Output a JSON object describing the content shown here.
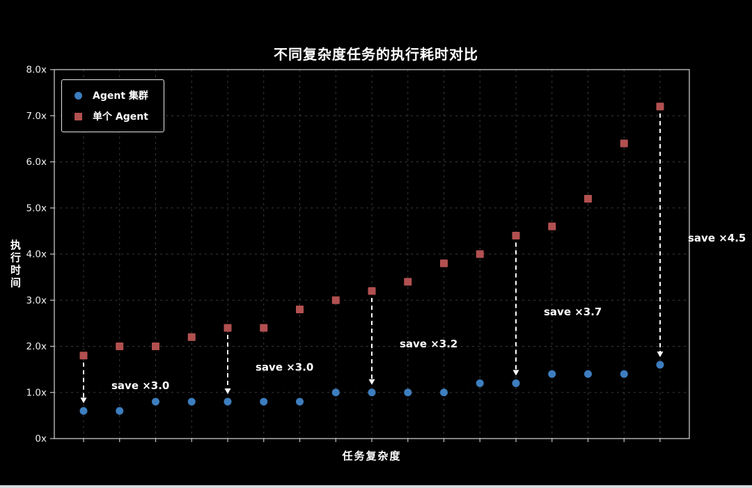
{
  "page": {
    "background": "#000000",
    "bottom_bar_color": "#d8dbe0"
  },
  "chart_data": {
    "type": "scatter",
    "title": "不同复杂度任务的执行耗时对比",
    "xlabel": "任务复杂度",
    "ylabel": "执行时间",
    "num_tasks": 17,
    "ylim": [
      0,
      8
    ],
    "ytick_values": [
      0,
      1,
      2,
      3,
      4,
      5,
      6,
      7,
      8
    ],
    "ytick_labels": [
      "0x",
      "1.0x",
      "2.0x",
      "3.0x",
      "4.0x",
      "5.0x",
      "6.0x",
      "7.0x",
      "8.0x"
    ],
    "x_tick_labels": [],
    "grid": true,
    "grid_color": "#3a3a3a",
    "axis_color": "#c9c9c9",
    "legend_position": "upper-left",
    "series": [
      {
        "name": "Agent 集群",
        "marker": "circle",
        "color": "#3d7ebf",
        "values": [
          0.6,
          0.6,
          0.8,
          0.8,
          0.8,
          0.8,
          0.8,
          1.0,
          1.0,
          1.0,
          1.0,
          1.2,
          1.2,
          1.4,
          1.4,
          1.4,
          1.6
        ]
      },
      {
        "name": "单个 Agent",
        "marker": "square",
        "color": "#b25050",
        "values": [
          1.8,
          2.0,
          2.0,
          2.2,
          2.4,
          2.4,
          2.8,
          3.0,
          3.2,
          3.4,
          3.8,
          4.0,
          4.4,
          4.6,
          5.2,
          6.4,
          7.2
        ]
      }
    ],
    "annotation_color": "#ffffff",
    "annotations": [
      {
        "index": 0,
        "label": "save ×3.0",
        "label_y": 1.15
      },
      {
        "index": 4,
        "label": "save ×3.0",
        "label_y": 1.55
      },
      {
        "index": 8,
        "label": "save ×3.2",
        "label_y": 2.05
      },
      {
        "index": 12,
        "label": "save ×3.7",
        "label_y": 2.75
      },
      {
        "index": 16,
        "label": "save ×4.5",
        "label_y": 4.35
      }
    ]
  }
}
